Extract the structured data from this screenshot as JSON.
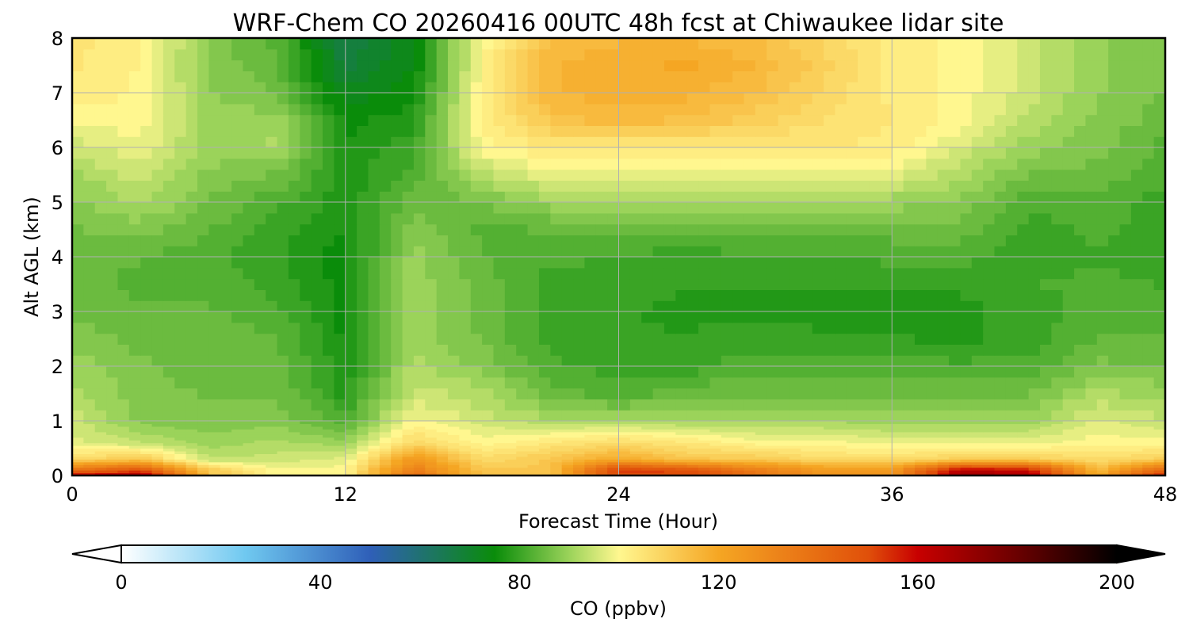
{
  "chart_data": {
    "type": "heatmap",
    "title": "WRF-Chem CO  20260416 00UTC 48h fcst at Chiwaukee lidar site",
    "xlabel": "Forecast Time (Hour)",
    "ylabel": "Alt AGL (km)",
    "xlim": [
      0,
      48
    ],
    "ylim": [
      0,
      8
    ],
    "xticks": [
      "0",
      "12",
      "24",
      "36",
      "48"
    ],
    "yticks": [
      "0",
      "1",
      "2",
      "3",
      "4",
      "5",
      "6",
      "7",
      "8"
    ],
    "grid": true,
    "colorbar": {
      "label": "CO  (ppbv)",
      "range": [
        0,
        200
      ],
      "ticks": [
        "0",
        "40",
        "80",
        "120",
        "160",
        "200"
      ],
      "extend": "both",
      "colors": {
        "low_extend": "#ffffff",
        "c0": "#ffffff",
        "c25": "#6fc8f0",
        "c50": "#2f5fb8",
        "c75": "#0a8c0a",
        "c90": "#9bd35a",
        "c100": "#fff78f",
        "c120": "#f5a623",
        "c150": "#e0500a",
        "c160": "#c80000",
        "c180": "#6a0000",
        "c200": "#000000",
        "high_extend": "#000000"
      }
    },
    "x": [
      0,
      3,
      6,
      9,
      12,
      15,
      18,
      21,
      24,
      27,
      30,
      33,
      36,
      39,
      42,
      45,
      48
    ],
    "y": [
      0,
      0.1,
      0.3,
      0.6,
      1,
      1.5,
      2,
      2.5,
      3,
      3.5,
      4,
      4.5,
      5,
      5.5,
      6,
      6.5,
      7,
      7.5,
      8
    ],
    "z": [
      [
        162,
        170,
        112,
        100,
        100,
        140,
        112,
        112,
        150,
        150,
        135,
        125,
        125,
        170,
        165,
        118,
        160
      ],
      [
        140,
        150,
        112,
        100,
        100,
        135,
        112,
        112,
        155,
        150,
        135,
        125,
        125,
        165,
        160,
        115,
        145
      ],
      [
        108,
        112,
        94,
        95,
        97,
        125,
        107,
        112,
        120,
        112,
        112,
        107,
        107,
        110,
        110,
        107,
        110
      ],
      [
        97,
        94,
        90,
        92,
        90,
        108,
        100,
        104,
        107,
        104,
        100,
        100,
        98,
        98,
        98,
        100,
        100
      ],
      [
        95,
        88,
        87,
        88,
        82,
        100,
        95,
        92,
        92,
        91,
        91,
        91,
        90,
        90,
        90,
        97,
        94
      ],
      [
        92,
        87,
        86,
        86,
        78,
        95,
        92,
        85,
        82,
        85,
        86,
        86,
        86,
        86,
        86,
        92,
        90
      ],
      [
        90,
        87,
        85,
        85,
        77,
        92,
        88,
        82,
        80,
        80,
        83,
        82,
        82,
        82,
        82,
        87,
        86
      ],
      [
        88,
        85,
        85,
        84,
        76,
        90,
        86,
        80,
        79,
        79,
        80,
        79,
        79,
        78,
        80,
        84,
        84
      ],
      [
        86,
        84,
        84,
        82,
        75,
        90,
        85,
        80,
        79,
        78,
        78,
        78,
        78,
        78,
        80,
        82,
        82
      ],
      [
        85,
        83,
        83,
        80,
        75,
        90,
        85,
        80,
        80,
        79,
        79,
        79,
        79,
        79,
        81,
        82,
        81
      ],
      [
        84,
        84,
        82,
        79,
        75,
        90,
        84,
        82,
        81,
        80,
        81,
        81,
        82,
        82,
        80,
        81,
        80
      ],
      [
        86,
        87,
        84,
        80,
        76,
        88,
        83,
        84,
        84,
        84,
        84,
        84,
        85,
        85,
        80,
        82,
        80
      ],
      [
        88,
        92,
        86,
        82,
        77,
        85,
        86,
        90,
        90,
        90,
        90,
        90,
        90,
        88,
        82,
        83,
        80
      ],
      [
        90,
        95,
        88,
        86,
        77,
        82,
        93,
        98,
        98,
        98,
        97,
        97,
        97,
        92,
        86,
        85,
        82
      ],
      [
        95,
        98,
        90,
        92,
        77,
        80,
        100,
        104,
        103,
        104,
        104,
        104,
        103,
        96,
        90,
        87,
        83
      ],
      [
        99,
        100,
        90,
        90,
        75,
        78,
        102,
        112,
        115,
        113,
        110,
        106,
        104,
        100,
        93,
        88,
        85
      ],
      [
        103,
        101,
        89,
        86,
        72,
        75,
        102,
        116,
        118,
        117,
        114,
        108,
        103,
        100,
        95,
        89,
        86
      ],
      [
        104,
        101,
        88,
        84,
        68,
        74,
        100,
        116,
        118,
        119,
        116,
        110,
        103,
        100,
        95,
        89,
        86
      ],
      [
        105,
        102,
        88,
        83,
        66,
        74,
        100,
        114,
        116,
        116,
        114,
        108,
        103,
        100,
        95,
        89,
        86
      ]
    ]
  }
}
